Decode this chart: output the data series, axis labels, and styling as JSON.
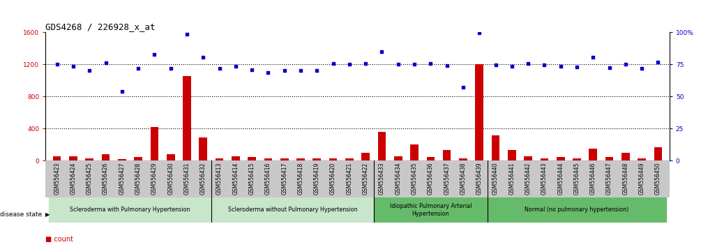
{
  "title": "GDS4268 / 226928_x_at",
  "samples": [
    "GSM556423",
    "GSM556424",
    "GSM556425",
    "GSM556426",
    "GSM556427",
    "GSM556428",
    "GSM556429",
    "GSM556430",
    "GSM556431",
    "GSM556432",
    "GSM556413",
    "GSM556414",
    "GSM556415",
    "GSM556416",
    "GSM556417",
    "GSM556418",
    "GSM556419",
    "GSM556420",
    "GSM556421",
    "GSM556422",
    "GSM556433",
    "GSM556434",
    "GSM556435",
    "GSM556436",
    "GSM556437",
    "GSM556438",
    "GSM556439",
    "GSM556440",
    "GSM556441",
    "GSM556442",
    "GSM556443",
    "GSM556444",
    "GSM556445",
    "GSM556446",
    "GSM556447",
    "GSM556448",
    "GSM556449",
    "GSM556450"
  ],
  "count_values": [
    55,
    50,
    25,
    80,
    15,
    40,
    420,
    75,
    1050,
    290,
    30,
    55,
    40,
    25,
    30,
    25,
    30,
    30,
    30,
    100,
    360,
    55,
    200,
    45,
    130,
    30,
    1200,
    310,
    130,
    55,
    30,
    45,
    30,
    150,
    40,
    95,
    30,
    170
  ],
  "percentile_values": [
    1200,
    1170,
    1120,
    1220,
    860,
    1150,
    1320,
    1150,
    1570,
    1290,
    1150,
    1170,
    1130,
    1100,
    1120,
    1120,
    1125,
    1205,
    1200,
    1210,
    1360,
    1200,
    1200,
    1205,
    1185,
    910,
    1590,
    1190,
    1175,
    1205,
    1195,
    1170,
    1165,
    1285,
    1155,
    1200,
    1150,
    1225
  ],
  "groups": [
    {
      "label": "Scleroderma with Pulmonary Hypertension",
      "start": 0,
      "end": 9,
      "color": "#c8e6c9"
    },
    {
      "label": "Scleroderma without Pulmonary Hypertension",
      "start": 10,
      "end": 19,
      "color": "#c8e6c9"
    },
    {
      "label": "Idiopathic Pulmonary Arterial\nHypertension",
      "start": 20,
      "end": 26,
      "color": "#66bb6a"
    },
    {
      "label": "Normal (no pulmonary hypertension)",
      "start": 27,
      "end": 37,
      "color": "#66bb6a"
    }
  ],
  "ylim_left": [
    0,
    1600
  ],
  "ylim_right": [
    0,
    100
  ],
  "yticks_left": [
    0,
    400,
    800,
    1200,
    1600
  ],
  "yticks_right": [
    0,
    25,
    50,
    75,
    100
  ],
  "bar_color": "#cc0000",
  "dot_color": "#0000cc",
  "xtick_bg_color": "#c8c8c8",
  "title_fontsize": 9,
  "tick_fontsize": 5.5,
  "label_fontsize": 7
}
